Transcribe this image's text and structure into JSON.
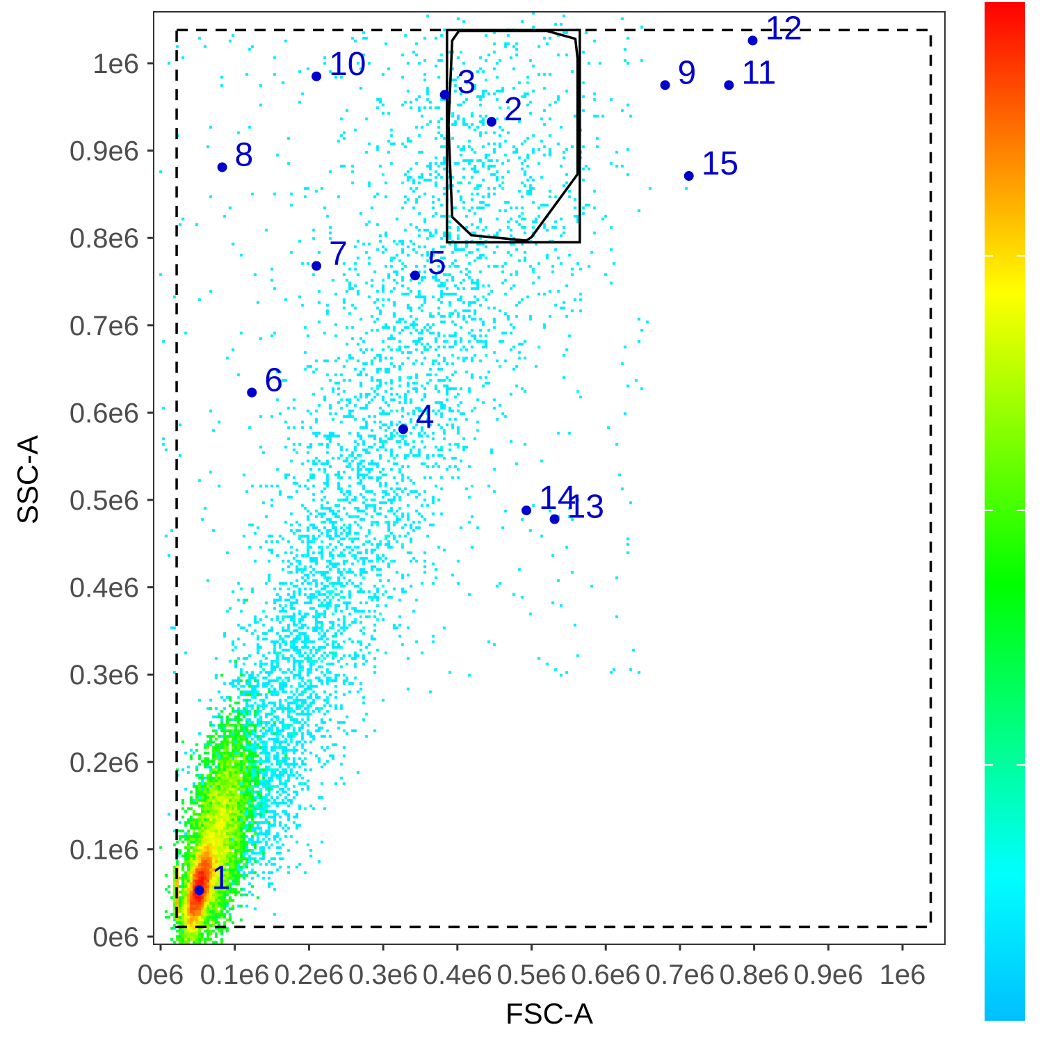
{
  "chart_data": {
    "type": "scatter",
    "subtype": "density-scatter",
    "title": "",
    "xlabel": "FSC-A",
    "ylabel": "SSC-A",
    "xlim": [
      -10000.0,
      1060000.0
    ],
    "ylim": [
      -10000.0,
      1050000.0
    ],
    "x_ticks": [
      0,
      100000,
      200000,
      300000,
      400000,
      500000,
      600000,
      700000,
      800000,
      900000,
      1000000
    ],
    "x_tick_labels": [
      "0e6",
      "0.1e6",
      "0.2e6",
      "0.3e6",
      "0.4e6",
      "0.5e6",
      "0.6e6",
      "0.7e6",
      "0.8e6",
      "0.9e6",
      "1e6"
    ],
    "y_ticks": [
      0,
      100000,
      200000,
      300000,
      400000,
      500000,
      600000,
      700000,
      800000,
      900000,
      1000000
    ],
    "y_tick_labels": [
      "0e6",
      "0.1e6",
      "0.2e6",
      "0.3e6",
      "0.4e6",
      "0.5e6",
      "0.6e6",
      "0.7e6",
      "0.8e6",
      "0.9e6",
      "1e6"
    ],
    "grid": false,
    "colorscale": [
      "#00bfff",
      "#00ffff",
      "#00ff80",
      "#00ff00",
      "#80ff00",
      "#ffff00",
      "#ff8000",
      "#ff0000"
    ],
    "colorbar": {
      "placement": "right",
      "tick_count": 3,
      "labels": []
    },
    "labeled_points": [
      {
        "label": "1",
        "x": 52000,
        "y": 53000
      },
      {
        "label": "2",
        "x": 446000,
        "y": 933000
      },
      {
        "label": "3",
        "x": 383000,
        "y": 964000
      },
      {
        "label": "4",
        "x": 327000,
        "y": 581000
      },
      {
        "label": "5",
        "x": 343000,
        "y": 757000
      },
      {
        "label": "6",
        "x": 123000,
        "y": 623000
      },
      {
        "label": "7",
        "x": 210000,
        "y": 768000
      },
      {
        "label": "8",
        "x": 83000,
        "y": 881000
      },
      {
        "label": "9",
        "x": 680000,
        "y": 975000
      },
      {
        "label": "10",
        "x": 210000,
        "y": 985000
      },
      {
        "label": "11",
        "x": 766000,
        "y": 975000
      },
      {
        "label": "12",
        "x": 798000,
        "y": 1026000
      },
      {
        "label": "13",
        "x": 531000,
        "y": 478000
      },
      {
        "label": "14",
        "x": 493000,
        "y": 488000
      },
      {
        "label": "15",
        "x": 712000,
        "y": 871000
      }
    ],
    "point_color": "#0000cd",
    "gates": [
      {
        "type": "rectangle",
        "style": "dashed",
        "x": [
          21600,
          1038000
        ],
        "y": [
          11000,
          1038000
        ]
      },
      {
        "type": "rectangle",
        "style": "solid",
        "x": [
          386000,
          565000
        ],
        "y": [
          795000,
          1038000
        ]
      },
      {
        "type": "polygon",
        "style": "solid",
        "points": [
          [
            393000,
            824000
          ],
          [
            419000,
            803000
          ],
          [
            493000,
            797000
          ],
          [
            500000,
            801000
          ],
          [
            562000,
            873000
          ],
          [
            562000,
            1005000
          ],
          [
            559000,
            1028000
          ],
          [
            521000,
            1037000
          ],
          [
            402000,
            1037000
          ],
          [
            393000,
            1026000
          ],
          [
            388000,
            929000
          ]
        ]
      }
    ]
  }
}
